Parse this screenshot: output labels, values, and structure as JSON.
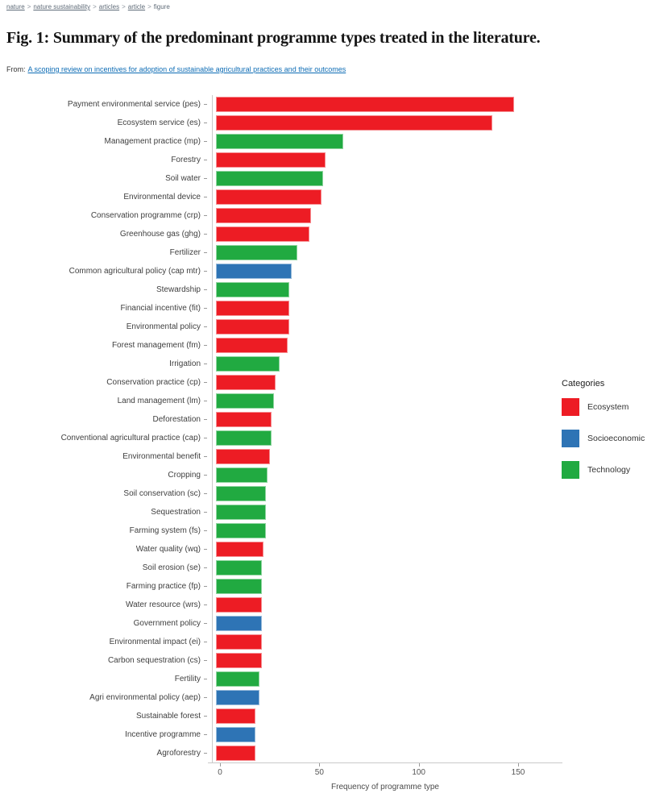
{
  "breadcrumb": {
    "separator": ">",
    "items": [
      {
        "label": "nature",
        "current": false
      },
      {
        "label": "nature sustainability",
        "current": false
      },
      {
        "label": "articles",
        "current": false
      },
      {
        "label": "article",
        "current": false
      },
      {
        "label": "figure",
        "current": true
      }
    ]
  },
  "figure": {
    "title": "Fig. 1: Summary of the predominant programme types treated in the literature.",
    "from_prefix": "From:",
    "from_link": "A scoping review on incentives for adoption of sustainable agricultural practices and their outcomes"
  },
  "colors": {
    "ecosystem": "#ED1C24",
    "socioeconomic": "#2E74B5",
    "technology": "#21AA41",
    "link": "#0d6cb5",
    "axis_line": "#c9c9c9",
    "tick": "#9a9a9a",
    "label_text": "#3f3f3f"
  },
  "legend": {
    "title": "Categories",
    "items": [
      {
        "label": "Ecosystem",
        "color_key": "ecosystem"
      },
      {
        "label": "Socioeconomic",
        "color_key": "socioeconomic"
      },
      {
        "label": "Technology",
        "color_key": "technology"
      }
    ]
  },
  "chart_data": {
    "type": "bar",
    "orientation": "horizontal",
    "title": "Summary of the predominant programme types treated in the literature",
    "xlabel": "Frequency of programme type",
    "ylabel": "",
    "x_ticks": [
      0,
      50,
      100,
      150
    ],
    "xlim": [
      0,
      157
    ],
    "grid": false,
    "legend_position": "right",
    "categories": [
      "Payment environmental service (pes)",
      "Ecosystem service (es)",
      "Management practice (mp)",
      "Forestry",
      "Soil water",
      "Environmental device",
      "Conservation programme (crp)",
      "Greenhouse gas (ghg)",
      "Fertilizer",
      "Common agricultural policy (cap mtr)",
      "Stewardship",
      "Financial incentive (fit)",
      "Environmental policy",
      "Forest management (fm)",
      "Irrigation",
      "Conservation practice (cp)",
      "Land management (lm)",
      "Deforestation",
      "Conventional agricultural practice (cap)",
      "Environmental benefit",
      "Cropping",
      "Soil conservation (sc)",
      "Sequestration",
      "Farming system (fs)",
      "Water quality (wq)",
      "Soil erosion (se)",
      "Farming practice (fp)",
      "Water resource (wrs)",
      "Government policy",
      "Environmental impact (ei)",
      "Carbon sequestration (cs)",
      "Fertility",
      "Agri environmental policy (aep)",
      "Sustainable forest",
      "Incentive programme",
      "Agroforestry"
    ],
    "values": [
      150,
      139,
      64,
      55,
      54,
      53,
      48,
      47,
      41,
      38,
      37,
      37,
      37,
      36,
      32,
      30,
      29,
      28,
      28,
      27,
      26,
      25,
      25,
      25,
      24,
      23,
      23,
      23,
      23,
      23,
      23,
      22,
      22,
      20,
      20,
      20
    ],
    "groups": [
      "Ecosystem",
      "Ecosystem",
      "Technology",
      "Ecosystem",
      "Technology",
      "Ecosystem",
      "Ecosystem",
      "Ecosystem",
      "Technology",
      "Socioeconomic",
      "Technology",
      "Ecosystem",
      "Ecosystem",
      "Ecosystem",
      "Technology",
      "Ecosystem",
      "Technology",
      "Ecosystem",
      "Technology",
      "Ecosystem",
      "Technology",
      "Technology",
      "Technology",
      "Technology",
      "Ecosystem",
      "Technology",
      "Technology",
      "Ecosystem",
      "Socioeconomic",
      "Ecosystem",
      "Ecosystem",
      "Technology",
      "Socioeconomic",
      "Ecosystem",
      "Socioeconomic",
      "Ecosystem"
    ]
  }
}
